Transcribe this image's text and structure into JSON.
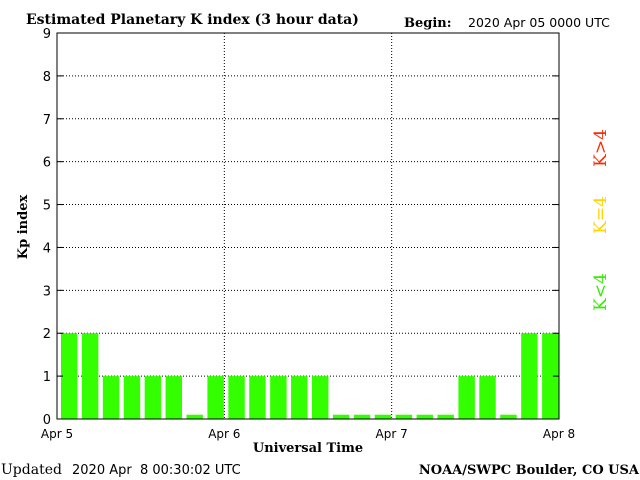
{
  "header": {
    "title": "Estimated Planetary K index (3 hour data)",
    "begin_label": "Begin:",
    "begin_value": "2020 Apr 05 0000 UTC"
  },
  "footer": {
    "updated_label": "Updated",
    "updated_value": "2020 Apr  8 00:30:02 UTC",
    "credit": "NOAA/SWPC Boulder, CO USA"
  },
  "legend": {
    "high": {
      "label": "K>4",
      "color": "#ff2a00"
    },
    "equal": {
      "label": "K=4",
      "color": "#ffd400"
    },
    "low": {
      "label": "K<4",
      "color": "#33ee00"
    }
  },
  "chart_data": {
    "type": "bar",
    "title": "Estimated Planetary K index (3 hour data)",
    "xlabel": "Universal Time",
    "ylabel": "Kp index",
    "ylim": [
      0,
      9
    ],
    "yticks": [
      "0",
      "1",
      "2",
      "3",
      "4",
      "5",
      "6",
      "7",
      "8",
      "9"
    ],
    "xticks": [
      "Apr 5",
      "Apr 6",
      "Apr 7",
      "Apr 8"
    ],
    "grid": true,
    "bar_color": "#33ff00",
    "values": [
      2,
      2,
      1,
      1,
      1,
      1,
      0.1,
      1,
      1,
      1,
      1,
      1,
      1,
      0.1,
      0.1,
      0.1,
      0.1,
      0.1,
      0.1,
      1,
      1,
      0.1,
      2,
      2
    ]
  }
}
